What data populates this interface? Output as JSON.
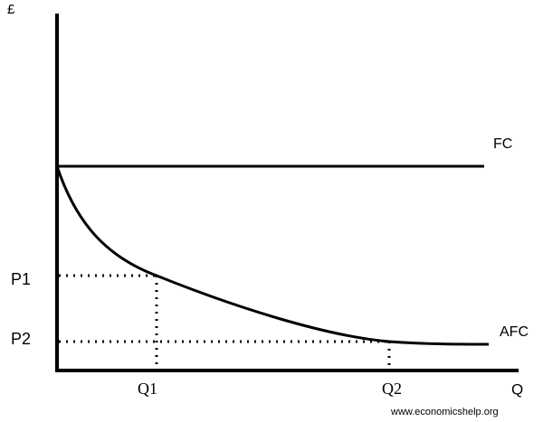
{
  "axes": {
    "y_label": "£",
    "x_label": "Q"
  },
  "lines": {
    "fc": "FC",
    "afc": "AFC"
  },
  "prices": [
    "P1",
    "P2"
  ],
  "quantities": [
    "Q1",
    "Q2"
  ],
  "footer": "www.economicshelp.org"
}
